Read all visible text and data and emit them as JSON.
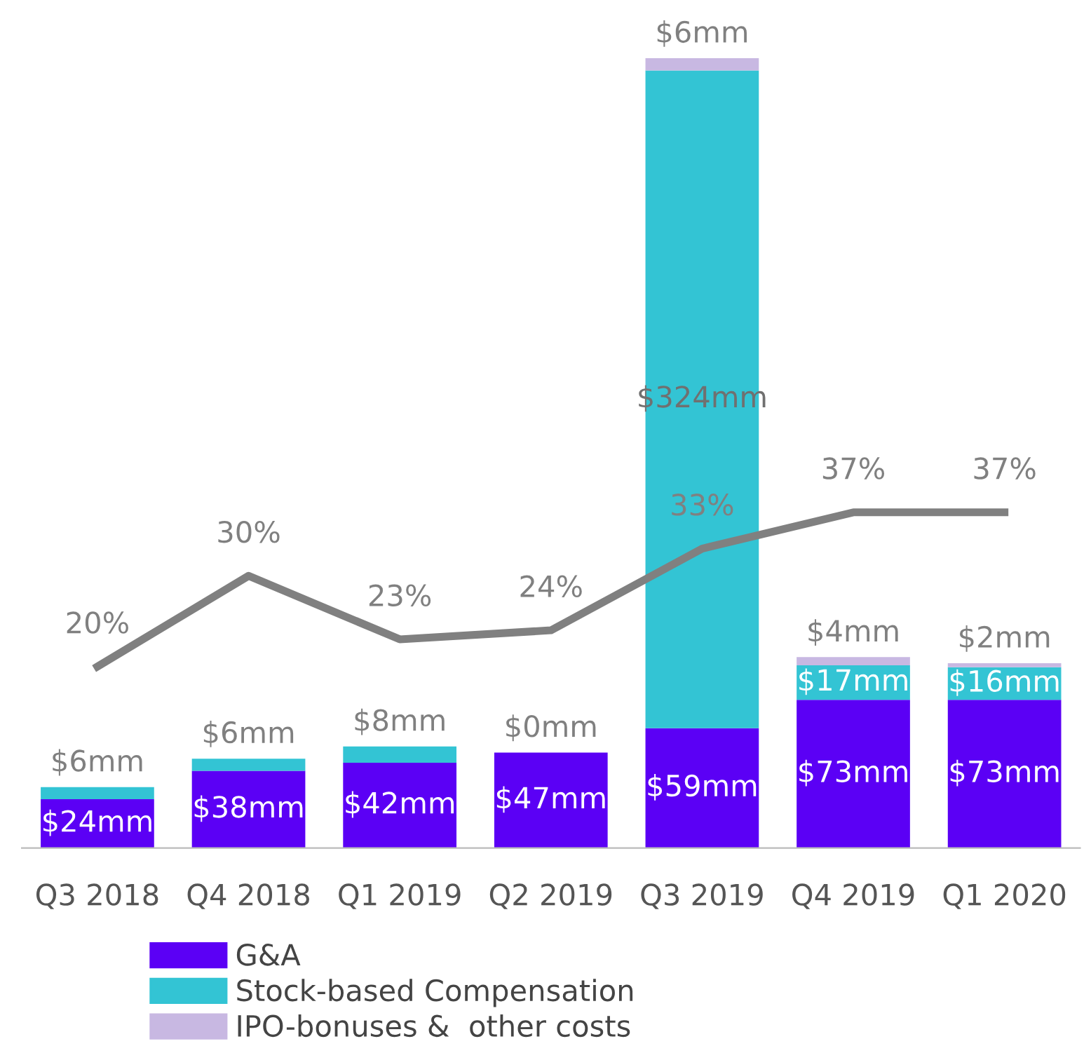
{
  "chart_data": {
    "type": "bar",
    "stacked": true,
    "categories": [
      "Q3 2018",
      "Q4 2018",
      "Q1 2019",
      "Q2 2019",
      "Q3 2019",
      "Q4 2019",
      "Q1 2020"
    ],
    "series": [
      {
        "name": "G&A",
        "color": "#5b00f5",
        "values": [
          24,
          38,
          42,
          47,
          59,
          73,
          73
        ],
        "value_labels": [
          "$24mm",
          "$38mm",
          "$42mm",
          "$47mm",
          "$59mm",
          "$73mm",
          "$73mm"
        ]
      },
      {
        "name": "Stock-based Compensation",
        "color": "#33c4d4",
        "values": [
          6,
          6,
          8,
          0,
          324,
          17,
          16
        ],
        "value_labels": [
          "$6mm",
          "$6mm",
          "$8mm",
          "$0mm",
          "$324mm",
          "$17mm",
          "$16mm"
        ]
      },
      {
        "name": "IPO-bonuses &  other costs",
        "color": "#c8b8e2",
        "values": [
          null,
          null,
          null,
          null,
          6,
          4,
          2
        ],
        "value_labels": [
          null,
          null,
          null,
          null,
          "$6mm",
          "$4mm",
          "$2mm"
        ]
      },
      {
        "type": "line",
        "axis": "y2",
        "color": "#808080",
        "values": [
          20,
          30,
          23,
          24,
          33,
          37,
          37
        ],
        "value_labels": [
          "20%",
          "30%",
          "23%",
          "24%",
          "33%",
          "37%",
          "37%"
        ]
      }
    ],
    "tick_labels": "x",
    "grid": false,
    "legend": "bottom"
  }
}
